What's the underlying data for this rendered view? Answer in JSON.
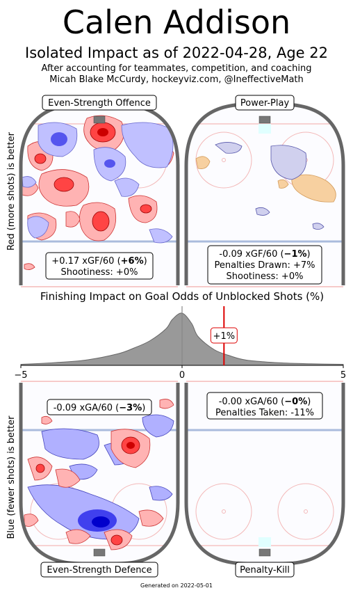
{
  "header": {
    "title": "Calen Addison",
    "subtitle": "Isolated Impact as of 2022-04-28, Age 22",
    "note1": "After accounting for teammates, competition, and coaching",
    "note2": "Micah Blake McCurdy, hockeyviz.com, @IneffectiveMath"
  },
  "footer": "Generated on 2022-05-01",
  "axis_labels": {
    "offence_side": "Red (more shots) is better",
    "defence_side": "Blue (fewer shots) is better"
  },
  "panels": {
    "es_offence": {
      "title": "Even-Strength Offence",
      "line1_pre": "+0.17 xGF/60 (",
      "line1_bold": "+6%",
      "line1_post": ")",
      "line2": "Shootiness: +0%"
    },
    "power_play": {
      "title": "Power-Play",
      "line1_pre": "-0.09 xGF/60 (",
      "line1_bold": "−1%",
      "line1_post": ")",
      "line2": "Penalties Drawn: +7%",
      "line3": "Shootiness: +0%"
    },
    "es_defence": {
      "title": "Even-Strength Defence",
      "line1_pre": "-0.09 xGA/60 (",
      "line1_bold": "−3%",
      "line1_post": ")"
    },
    "penalty_kill": {
      "title": "Penalty-Kill",
      "line1_pre": "-0.00 xGA/60 (",
      "line1_bold": "−0%",
      "line1_post": ")",
      "line2": "Penalties Taken: -11%"
    }
  },
  "colors": {
    "more_shots": "#ff0000",
    "fewer_shots": "#0000ff",
    "pp_pk_contour": "#f5c28a",
    "rink_border": "#666666",
    "marker": "#dd0000",
    "density_fill": "#999999"
  },
  "chart_data": {
    "type": "area",
    "title": "Finishing Impact on Goal Odds of Unblocked Shots (%)",
    "xlim": [
      -5,
      5
    ],
    "xticks": [
      "−5",
      "0",
      "5"
    ],
    "marker": {
      "x": 1.3,
      "label": "+1%"
    },
    "x": [
      -5,
      -4,
      -3,
      -2,
      -1.5,
      -1,
      -0.5,
      -0.3,
      0,
      0.3,
      0.5,
      1,
      1.5,
      2,
      3,
      4,
      5
    ],
    "y": [
      0.02,
      0.05,
      0.1,
      0.22,
      0.33,
      0.47,
      0.7,
      0.88,
      1.0,
      0.8,
      0.55,
      0.3,
      0.18,
      0.1,
      0.05,
      0.03,
      0.02
    ]
  }
}
